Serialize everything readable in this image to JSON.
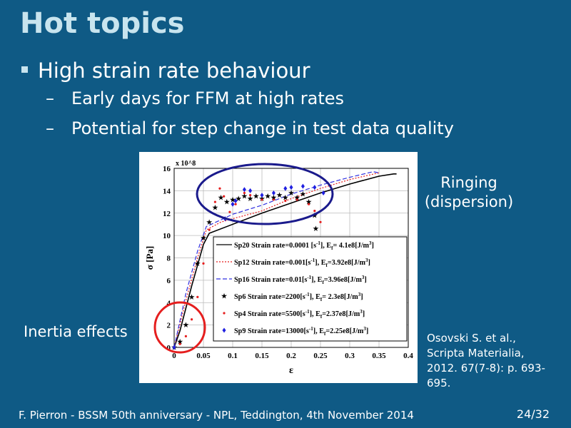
{
  "slide": {
    "title": "Hot topics",
    "bullet": "High strain rate behaviour",
    "subbullets": [
      "Early days for FFM at high rates",
      "Potential for step change in test data quality"
    ],
    "annotation_ringing": [
      "Ringing",
      "(dispersion)"
    ],
    "annotation_inertia": "Inertia effects",
    "citation": [
      "Osovski S. et al.,",
      "Scripta Materialia,",
      "2012. 67(7-8): p. 693-",
      "695."
    ],
    "footer": "F. Pierron - BSSM 50th anniversary - NPL, Teddington, 4th November 2014",
    "page_number": "24/32",
    "colors": {
      "background": "#0f5a85",
      "title": "#c8e4ee",
      "ringing_ellipse": "#1a1a8c",
      "inertia_circle": "#e51e1e"
    }
  },
  "chart_data": {
    "type": "line",
    "xlabel": "ε",
    "ylabel": "σ [Pa]",
    "y_multiplier": "x 10^8",
    "xlim": [
      0,
      0.4
    ],
    "ylim": [
      0,
      16
    ],
    "xticks": [
      "0",
      "0.05",
      "0.1",
      "0.15",
      "0.2",
      "0.25",
      "0.3",
      "0.35",
      "0.4"
    ],
    "yticks": [
      "0",
      "2",
      "4",
      "6",
      "8",
      "10",
      "12",
      "14",
      "16"
    ],
    "grid": true,
    "legend_placement": "bottom-right",
    "series": [
      {
        "name": "Sp20 Strain rate=0.0001 [s^-1], E_f= 4.1e8[J/m^3]",
        "style": "solid",
        "color": "#000000",
        "points": [
          [
            0,
            0
          ],
          [
            0.01,
            1.5
          ],
          [
            0.03,
            5.5
          ],
          [
            0.05,
            9.2
          ],
          [
            0.06,
            10.2
          ],
          [
            0.1,
            11
          ],
          [
            0.15,
            12
          ],
          [
            0.2,
            12.9
          ],
          [
            0.25,
            13.8
          ],
          [
            0.3,
            14.6
          ],
          [
            0.35,
            15.3
          ],
          [
            0.375,
            15.5
          ],
          [
            0.38,
            15.5
          ]
        ]
      },
      {
        "name": "Sp12 Strain rate=0.001[s^-1], E_f=3.92e8[J/m^3]",
        "style": "dotted",
        "color": "#e51e1e",
        "points": [
          [
            0,
            0
          ],
          [
            0.02,
            4.2
          ],
          [
            0.04,
            8
          ],
          [
            0.055,
            10.5
          ],
          [
            0.08,
            11.2
          ],
          [
            0.1,
            11.5
          ],
          [
            0.15,
            12.2
          ],
          [
            0.2,
            13.3
          ],
          [
            0.25,
            14.2
          ],
          [
            0.3,
            15
          ],
          [
            0.35,
            15.6
          ]
        ]
      },
      {
        "name": "Sp16 Strain rate=0.01[s^-1], E_f=3.96e8[J/m^3]",
        "style": "dashed",
        "color": "#3030e0",
        "points": [
          [
            0,
            0
          ],
          [
            0.02,
            4.8
          ],
          [
            0.04,
            8.6
          ],
          [
            0.055,
            10.8
          ],
          [
            0.08,
            11.4
          ],
          [
            0.1,
            11.9
          ],
          [
            0.15,
            12.7
          ],
          [
            0.2,
            13.7
          ],
          [
            0.25,
            14.5
          ],
          [
            0.3,
            15.2
          ],
          [
            0.34,
            15.7
          ],
          [
            0.35,
            15.6
          ]
        ]
      },
      {
        "name": "Sp6 Strain rate=2200[s^-1], E_f= 2.3e8[J/m^3]",
        "style": "star",
        "color": "#000000",
        "points": [
          [
            0,
            0
          ],
          [
            0.01,
            0.5
          ],
          [
            0.02,
            2
          ],
          [
            0.03,
            4.5
          ],
          [
            0.04,
            7.5
          ],
          [
            0.05,
            9.8
          ],
          [
            0.06,
            11.2
          ],
          [
            0.07,
            12.5
          ],
          [
            0.08,
            13.4
          ],
          [
            0.09,
            13.0
          ],
          [
            0.1,
            13.2
          ],
          [
            0.11,
            13.3
          ],
          [
            0.12,
            13.5
          ],
          [
            0.13,
            13.3
          ],
          [
            0.14,
            13.5
          ],
          [
            0.15,
            13.3
          ],
          [
            0.16,
            13.5
          ],
          [
            0.17,
            13.4
          ],
          [
            0.18,
            13.6
          ],
          [
            0.19,
            13.4
          ],
          [
            0.2,
            13.8
          ],
          [
            0.21,
            13.4
          ],
          [
            0.22,
            13.7
          ],
          [
            0.23,
            13.0
          ],
          [
            0.24,
            11.8
          ],
          [
            0.242,
            10.6
          ]
        ]
      },
      {
        "name": "Sp4 Strain rate=5500[s^-1], E_f=2.37e8[J/m^3]",
        "style": "dot",
        "color": "#e51e1e",
        "points": [
          [
            0,
            0
          ],
          [
            0.01,
            0.3
          ],
          [
            0.02,
            1
          ],
          [
            0.03,
            2.5
          ],
          [
            0.04,
            4.5
          ],
          [
            0.05,
            7.5
          ],
          [
            0.06,
            10.5
          ],
          [
            0.07,
            13
          ],
          [
            0.078,
            14.2
          ],
          [
            0.085,
            13.5
          ],
          [
            0.095,
            12.1
          ],
          [
            0.105,
            12.8
          ],
          [
            0.12,
            13.8
          ],
          [
            0.13,
            13.6
          ],
          [
            0.15,
            13.2
          ],
          [
            0.17,
            13.2
          ],
          [
            0.19,
            13.1
          ],
          [
            0.21,
            13.2
          ],
          [
            0.23,
            12.8
          ],
          [
            0.24,
            12.2
          ],
          [
            0.25,
            11.2
          ]
        ]
      },
      {
        "name": "Sp9 Strain rate=13000[s^-1], E_f=2.25e8[J/m^3]",
        "style": "diamond",
        "color": "#2020e0",
        "points": [
          [
            0,
            0
          ],
          [
            0.087,
            11.5
          ],
          [
            0.1,
            12.8
          ],
          [
            0.105,
            13.1
          ],
          [
            0.12,
            14.1
          ],
          [
            0.13,
            14
          ],
          [
            0.15,
            13.6
          ],
          [
            0.17,
            13.8
          ],
          [
            0.19,
            14.2
          ],
          [
            0.2,
            14.3
          ],
          [
            0.22,
            14.4
          ],
          [
            0.24,
            14.3
          ],
          [
            0.255,
            13.8
          ]
        ]
      }
    ]
  }
}
